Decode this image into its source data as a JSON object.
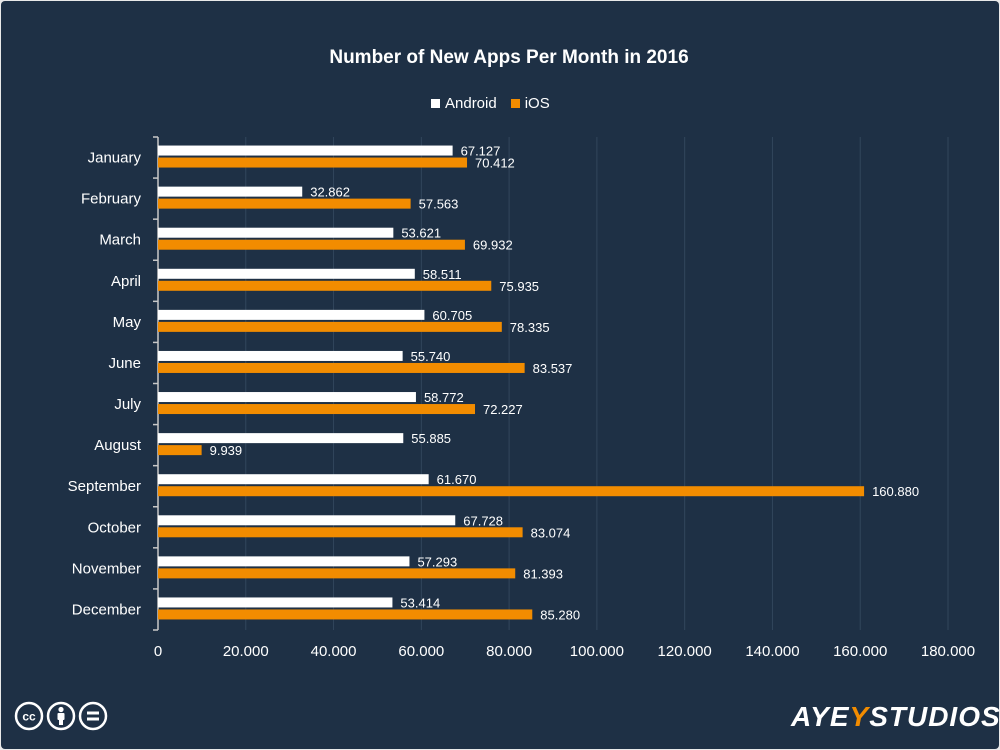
{
  "chart_data": {
    "type": "bar",
    "orientation": "horizontal",
    "title": "Number of New Apps Per Month in 2016",
    "categories": [
      "January",
      "February",
      "March",
      "April",
      "May",
      "June",
      "July",
      "August",
      "September",
      "October",
      "November",
      "December"
    ],
    "series": [
      {
        "name": "Android",
        "color": "#ffffff",
        "values": [
          67127,
          32862,
          53621,
          58511,
          60705,
          55740,
          58772,
          55885,
          61670,
          67728,
          57293,
          53414
        ],
        "labels": [
          "67.127",
          "32.862",
          "53.621",
          "58.511",
          "60.705",
          "55.740",
          "58.772",
          "55.885",
          "61.670",
          "67.728",
          "57.293",
          "53.414"
        ]
      },
      {
        "name": "iOS",
        "color": "#f28c00",
        "values": [
          70412,
          57563,
          69932,
          75935,
          78335,
          83537,
          72227,
          9939,
          160880,
          83074,
          81393,
          85280
        ],
        "labels": [
          "70.412",
          "57.563",
          "69.932",
          "75.935",
          "78.335",
          "83.537",
          "72.227",
          "9.939",
          "160.880",
          "83.074",
          "81.393",
          "85.280"
        ]
      }
    ],
    "xlim": [
      0,
      180000
    ],
    "xticks": [
      0,
      20000,
      40000,
      60000,
      80000,
      100000,
      120000,
      140000,
      160000,
      180000
    ],
    "xtick_labels": [
      "0",
      "20.000",
      "40.000",
      "60.000",
      "80.000",
      "100.000",
      "120.000",
      "140.000",
      "160.000",
      "180.000"
    ],
    "grid": true,
    "legend_position": "top"
  },
  "legend": {
    "android": "Android",
    "ios": "iOS"
  },
  "colors": {
    "background": "#1e3045",
    "android": "#ffffff",
    "ios": "#f28c00",
    "grid": "#32465c"
  },
  "footer": {
    "license_icons": [
      "cc-icon",
      "by-icon",
      "nd-icon"
    ],
    "logo_text": "AYEYSTUDIOS"
  }
}
